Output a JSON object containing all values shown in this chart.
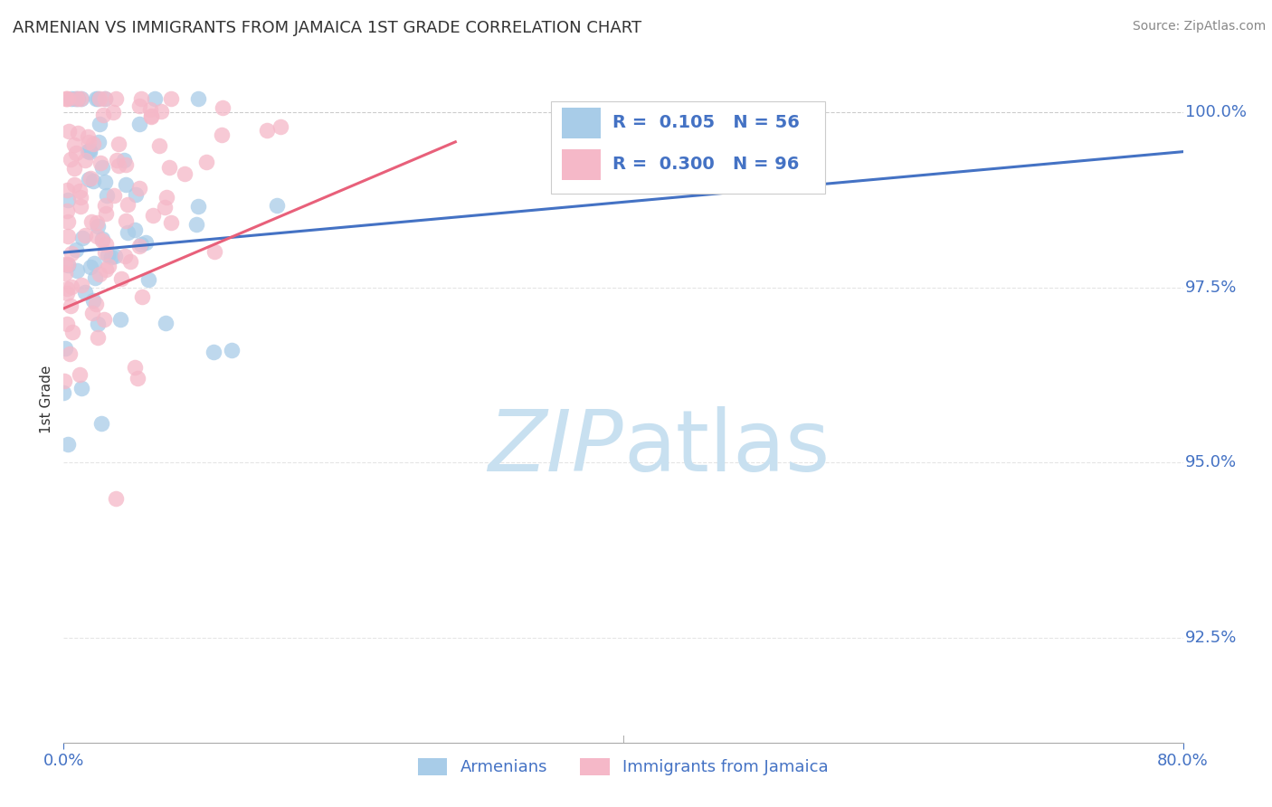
{
  "title": "ARMENIAN VS IMMIGRANTS FROM JAMAICA 1ST GRADE CORRELATION CHART",
  "source": "Source: ZipAtlas.com",
  "ylabel": "1st Grade",
  "xlim": [
    0.0,
    0.8
  ],
  "ylim": [
    0.91,
    1.008
  ],
  "ytick_labels": [
    "92.5%",
    "95.0%",
    "97.5%",
    "100.0%"
  ],
  "ytick_values": [
    0.925,
    0.95,
    0.975,
    1.0
  ],
  "r_armenian": 0.105,
  "n_armenian": 56,
  "r_jamaica": 0.3,
  "n_jamaica": 96,
  "blue_color": "#A8CCE8",
  "pink_color": "#F5B8C8",
  "blue_line_color": "#4472C4",
  "pink_line_color": "#E8607A",
  "watermark_zip_color": "#C8E0F0",
  "watermark_atlas_color": "#C8E0F0",
  "title_color": "#333333",
  "ylabel_color": "#333333",
  "tick_color": "#4472C4",
  "source_color": "#888888",
  "background_color": "#FFFFFF",
  "gridline_color": "#CCCCCC",
  "topline_color": "#AAAAAA"
}
